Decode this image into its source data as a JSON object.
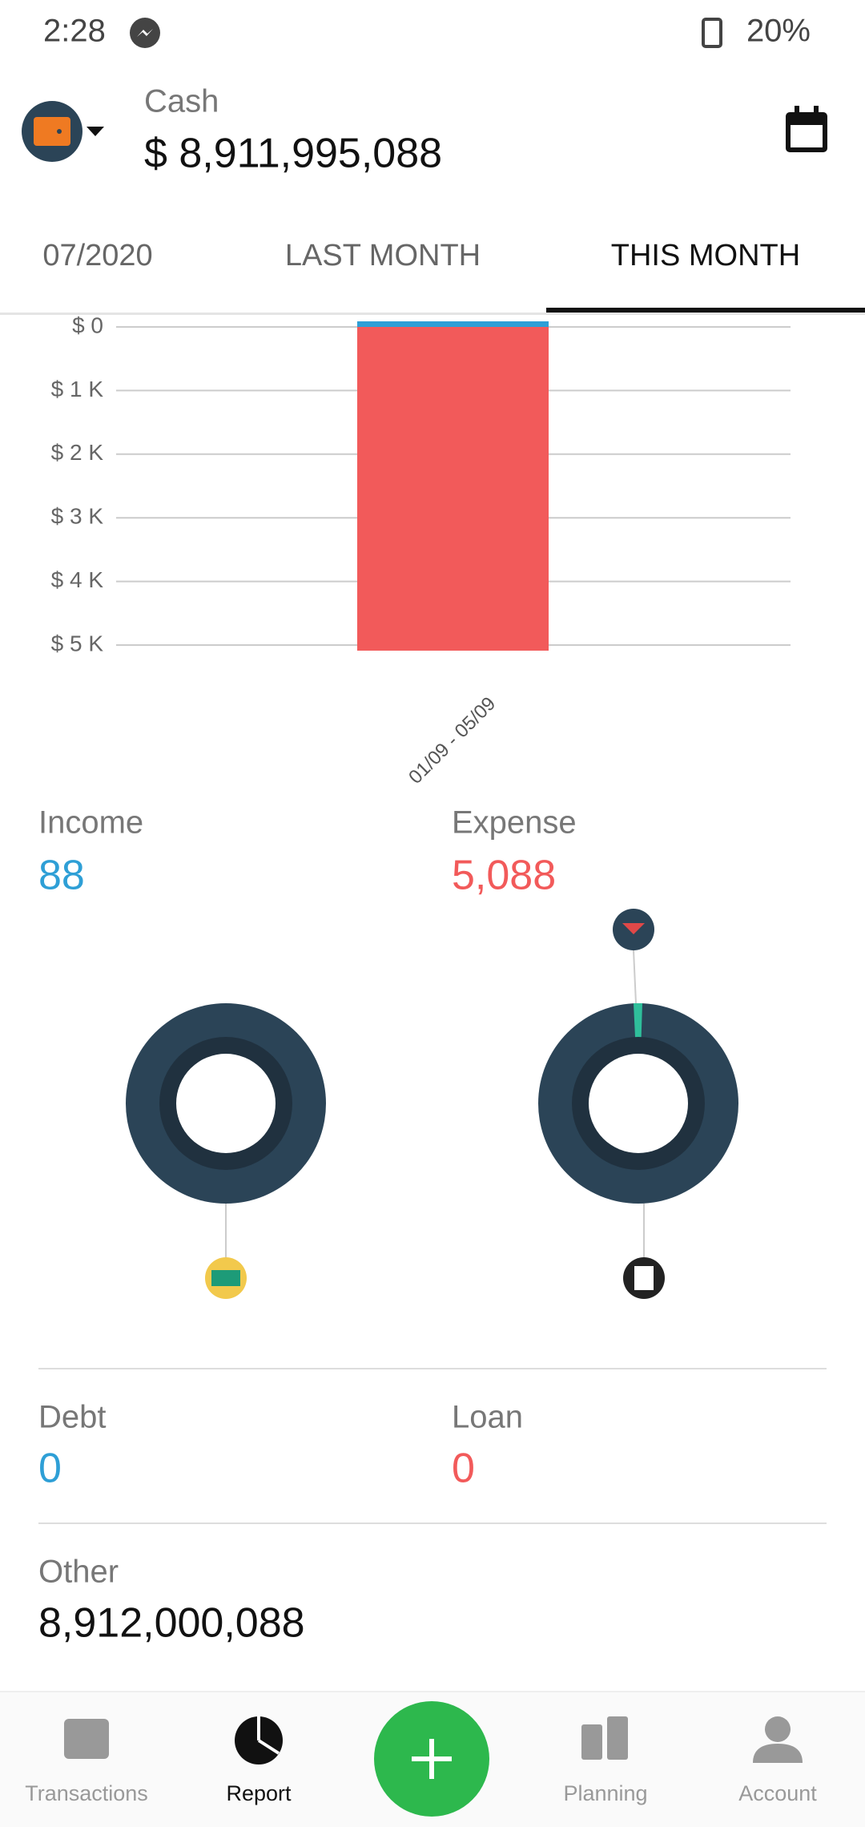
{
  "status_bar": {
    "time": "2:28",
    "battery": "20%"
  },
  "header": {
    "account": "Cash",
    "balance": "$ 8,911,995,088"
  },
  "tabs": [
    "07/2020",
    "LAST MONTH",
    "THIS MONTH"
  ],
  "chart_data": {
    "type": "bar",
    "categories": [
      "01/09 - 05/09"
    ],
    "series": [
      {
        "color": "#2e9fd6",
        "values": [
          88
        ]
      },
      {
        "color": "#f25a5a",
        "values": [
          5088
        ]
      }
    ],
    "ylim": [
      0,
      5000
    ],
    "y_inverted": true,
    "yticks": [
      {
        "value": 0,
        "label": "$ 0"
      },
      {
        "value": 1000,
        "label": "$ 1 K"
      },
      {
        "value": 2000,
        "label": "$ 2 K"
      },
      {
        "value": 3000,
        "label": "$ 3 K"
      },
      {
        "value": 4000,
        "label": "$ 4 K"
      },
      {
        "value": 5000,
        "label": "$ 5 K"
      }
    ],
    "grid": true
  },
  "summary": {
    "income_label": "Income",
    "income": "88",
    "expense_label": "Expense",
    "expense": "5,088",
    "debt_label": "Debt",
    "debt": "0",
    "loan_label": "Loan",
    "loan": "0",
    "other_label": "Other",
    "other": "8,912,000,088"
  },
  "nav": [
    "Transactions",
    "Report",
    "Planning",
    "Account"
  ]
}
